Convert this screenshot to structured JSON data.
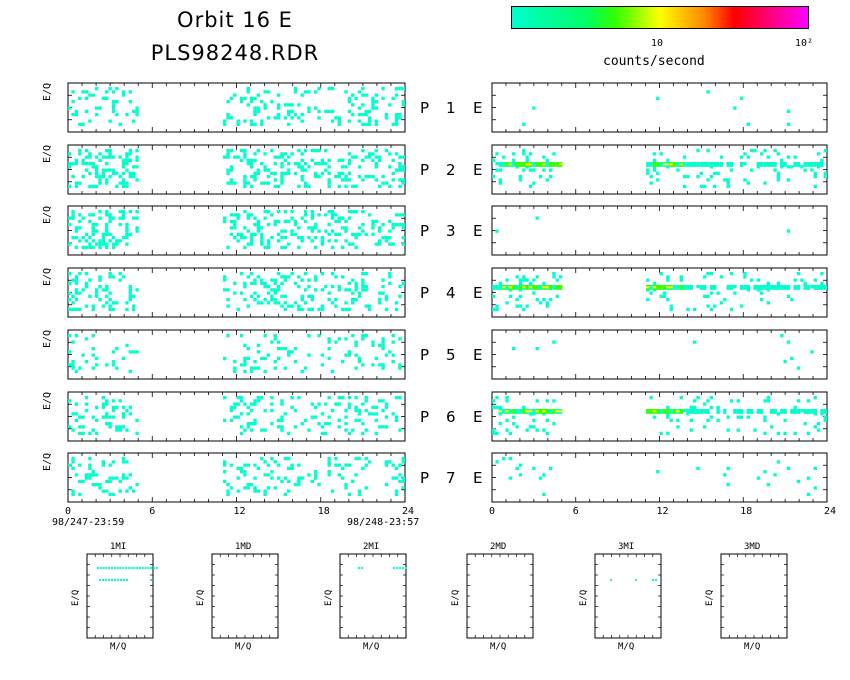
{
  "header": {
    "title": "Orbit 16 E",
    "filename": "PLS98248.RDR",
    "colorbar_ticks": [
      "10",
      "10²"
    ],
    "colorbar_label": "counts/second"
  },
  "time_axis": {
    "ticks": [
      "0",
      "6",
      "12",
      "18",
      "24"
    ],
    "start_label": "98/247-23:59",
    "end_label": "98/248-23:57"
  },
  "panel_ylabel": "E/Q",
  "rows": [
    {
      "p_label": "P",
      "num": "1",
      "e_label": "E"
    },
    {
      "p_label": "P",
      "num": "2",
      "e_label": "E"
    },
    {
      "p_label": "P",
      "num": "3",
      "e_label": "E"
    },
    {
      "p_label": "P",
      "num": "4",
      "e_label": "E"
    },
    {
      "p_label": "P",
      "num": "5",
      "e_label": "E"
    },
    {
      "p_label": "P",
      "num": "6",
      "e_label": "E"
    },
    {
      "p_label": "P",
      "num": "7",
      "e_label": "E"
    }
  ],
  "mini_panels": {
    "titles": [
      "1MI",
      "1MD",
      "2MI",
      "2MD",
      "3MI",
      "3MD"
    ],
    "xlabel": "M/Q",
    "ylabel": "E/Q"
  },
  "chart_data": {
    "type": "heatmap",
    "x_range": [
      0,
      24
    ],
    "x_unit": "hours",
    "color_scale": "log",
    "color_ticks": [
      "10",
      "10²"
    ],
    "data_gaps_hours": [
      [
        5,
        11
      ]
    ],
    "colors": {
      "low": "#00ffcc",
      "mid": "#33ff00",
      "high": "#ffff00",
      "frame": "#000000"
    },
    "left_column_activity": [
      0.35,
      0.55,
      0.45,
      0.4,
      0.25,
      0.35,
      0.3
    ],
    "right_column_activity": [
      0.02,
      0.35,
      0.01,
      0.3,
      0.03,
      0.3,
      0.05
    ],
    "right_column_band": [
      false,
      true,
      false,
      true,
      false,
      true,
      false
    ]
  }
}
